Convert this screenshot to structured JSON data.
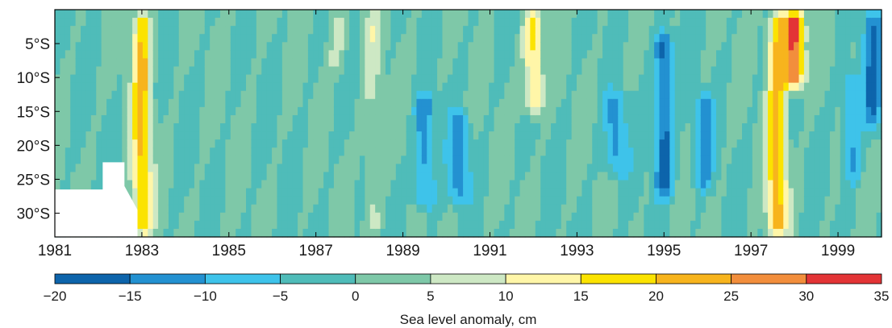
{
  "chart_data": {
    "type": "heatmap",
    "title": "",
    "xlabel": "",
    "ylabel": "",
    "x_ticks": [
      "1981",
      "1983",
      "1985",
      "1987",
      "1989",
      "1991",
      "1993",
      "1995",
      "1997",
      "1999"
    ],
    "x_tick_values": [
      1981,
      1983,
      1985,
      1987,
      1989,
      1991,
      1993,
      1995,
      1997,
      1999
    ],
    "xlim": [
      1981,
      2000
    ],
    "y_ticks": [
      "5°S",
      "10°S",
      "15°S",
      "20°S",
      "25°S",
      "30°S"
    ],
    "y_tick_values": [
      5,
      10,
      15,
      20,
      25,
      30
    ],
    "ylim": [
      0,
      33.5
    ],
    "colorbar": {
      "label": "Sea level anomaly, cm",
      "ticks": [
        "−20",
        "−15",
        "−10",
        "−5",
        "0",
        "5",
        "10",
        "15",
        "20",
        "25",
        "30",
        "35"
      ],
      "bounds": [
        -20,
        -15,
        -10,
        -5,
        0,
        5,
        10,
        15,
        20,
        25,
        30,
        35
      ],
      "colors": [
        "#0d64ab",
        "#2391d1",
        "#3ec3ea",
        "#4fbcb9",
        "#7ec8a8",
        "#cde8c4",
        "#fff6a8",
        "#fbe300",
        "#f7b41d",
        "#f28e3c",
        "#e33436"
      ]
    },
    "background_level": 0,
    "mask_color": "#ffffff",
    "events": [
      {
        "year": 1983.0,
        "lat_from": 0,
        "lat_to": 33.5,
        "anomaly": 20
      },
      {
        "year": 1987.5,
        "lat_from": 0,
        "lat_to": 10,
        "anomaly": 7
      },
      {
        "year": 1988.3,
        "lat_from": 0,
        "lat_to": 33.5,
        "anomaly": 6
      },
      {
        "year": 1989.5,
        "lat_from": 12,
        "lat_to": 30,
        "anomaly": -14
      },
      {
        "year": 1990.3,
        "lat_from": 15,
        "lat_to": 29,
        "anomaly": -13
      },
      {
        "year": 1992.0,
        "lat_from": 0,
        "lat_to": 16,
        "anomaly": 17
      },
      {
        "year": 1993.9,
        "lat_from": 12,
        "lat_to": 25,
        "anomaly": -12
      },
      {
        "year": 1995.0,
        "lat_from": 3,
        "lat_to": 28,
        "anomaly": -18
      },
      {
        "year": 1995.9,
        "lat_from": 12,
        "lat_to": 27,
        "anomaly": -12
      },
      {
        "year": 1997.6,
        "lat_from": 0,
        "lat_to": 33.5,
        "anomaly": 22
      },
      {
        "year": 1998.0,
        "lat_from": 0,
        "lat_to": 12,
        "anomaly": 32
      },
      {
        "year": 1999.3,
        "lat_from": 8,
        "lat_to": 26,
        "anomaly": -11
      },
      {
        "year": 1999.8,
        "lat_from": 0,
        "lat_to": 18,
        "anomaly": -14
      }
    ]
  }
}
